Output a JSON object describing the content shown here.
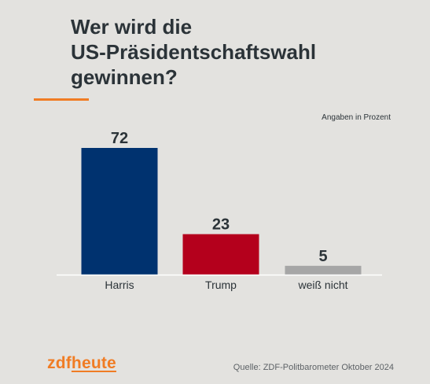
{
  "header": {
    "title_lines": [
      "Wer wird die",
      "US-Präsidentschaftswahl",
      "gewinnen?"
    ],
    "accent_color": "#f07c24"
  },
  "note": "Angaben in Prozent",
  "chart_data": {
    "type": "bar",
    "title": "Wer wird die US-Präsidentschaftswahl gewinnen?",
    "categories": [
      "Harris",
      "Trump",
      "weiß nicht"
    ],
    "values": [
      72,
      23,
      5
    ],
    "colors": [
      "#00326f",
      "#b4001c",
      "#a6a6a6"
    ],
    "ylim": [
      0,
      72
    ],
    "unit": "Angaben in Prozent",
    "grid": false,
    "legend": "none"
  },
  "footer": {
    "logo_part_a": "zdf",
    "logo_part_b": "heute",
    "logo_color": "#f07c24",
    "source": "Quelle: ZDF-Politbarometer Oktober 2024"
  }
}
